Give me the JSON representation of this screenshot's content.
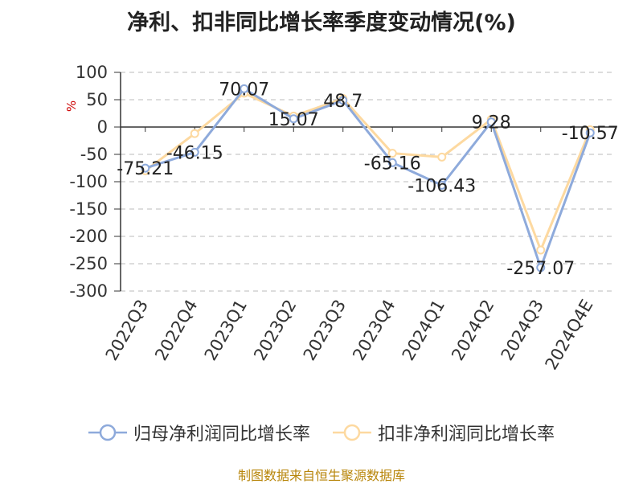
{
  "title": "净利、扣非同比增长率季度变动情况(%)",
  "source": "制图数据来自恒生聚源数据库",
  "colors": {
    "series1": "#8eaadb",
    "series2": "#fdd9a0",
    "grid": "#bbbbbb",
    "axis": "#333333",
    "unit": "#cc0000"
  },
  "chart_data": {
    "type": "line",
    "title": "净利、扣非同比增长率季度变动情况(%)",
    "ylabel": "%",
    "xlabel": "",
    "categories": [
      "2022Q3",
      "2022Q4",
      "2023Q1",
      "2023Q2",
      "2023Q3",
      "2023Q4",
      "2024Q1",
      "2024Q2",
      "2024Q3",
      "2024Q4E"
    ],
    "ylim": [
      -300,
      100
    ],
    "yticks": [
      100,
      50,
      0,
      -50,
      -100,
      -150,
      -200,
      -250,
      -300
    ],
    "grid": true,
    "legend_position": "bottom",
    "series": [
      {
        "name": "归母净利润同比增长率",
        "values": [
          -75.21,
          -46.15,
          70.07,
          15.07,
          48.7,
          -65.16,
          -106.43,
          9.28,
          -257.07,
          -10.57
        ]
      },
      {
        "name": "扣非净利润同比增长率",
        "values": [
          -80,
          -12,
          62,
          20,
          52,
          -48,
          -55,
          14,
          -225,
          -5
        ]
      }
    ],
    "data_labels": [
      "-75.21",
      "-46.15",
      "70.07",
      "15.07",
      "48.7",
      "-65.16",
      "-106.43",
      "9.28",
      "-257.07",
      "-10.57"
    ]
  }
}
